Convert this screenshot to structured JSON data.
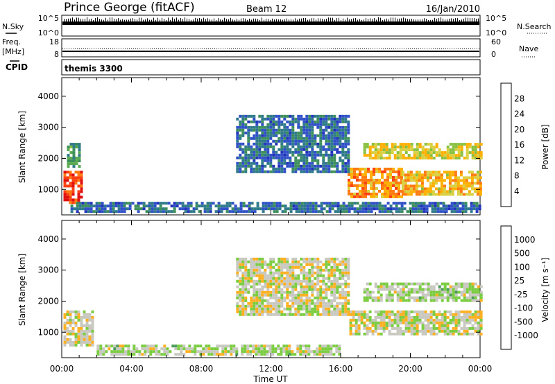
{
  "header": {
    "station": "Prince George (fitACF)",
    "beam": "Beam 12",
    "date": "16/Jan/2010"
  },
  "noise_panel": {
    "left_label": "N.Sky",
    "left_ticks": [
      "10^5",
      "10^0"
    ],
    "right_label": "N.Search",
    "right_ticks": [
      "10^5",
      "10^0"
    ],
    "left_marker": "line",
    "right_marker": "dotted"
  },
  "freq_panel": {
    "left_label": "Freq.",
    "left_unit": "[MHz]",
    "left_ticks": [
      "18",
      "8"
    ],
    "right_label": "Nave",
    "right_ticks": [
      "60",
      "0"
    ]
  },
  "cpid_panel": {
    "label": "CPID",
    "value": "themis 3300"
  },
  "x_axis": {
    "label": "Time UT",
    "ticks": [
      "00:00",
      "04:00",
      "08:00",
      "12:00",
      "16:00",
      "20:00",
      "00:00"
    ],
    "range_hours": [
      0,
      24
    ]
  },
  "chart_data": [
    {
      "type": "heatmap",
      "name": "power",
      "ylabel": "Slant Range [km]",
      "yticks": [
        1000,
        2000,
        3000,
        4000
      ],
      "ylim": [
        180,
        4600
      ],
      "colorbar": {
        "label": "Power [dB]",
        "ticks": [
          "28",
          "24",
          "20",
          "16",
          "12",
          "8",
          "4"
        ],
        "colors": [
          "#2233bb",
          "#3050c8",
          "#2e7a8a",
          "#3c8f5a",
          "#5aaa50",
          "#88c040",
          "#d8d040",
          "#ffb000",
          "#ff7a10",
          "#ff4010",
          "#e01010"
        ],
        "range": [
          0,
          30
        ]
      },
      "regions": [
        {
          "t": [
            0.1,
            1.2
          ],
          "r": [
            600,
            1600
          ],
          "level": 26
        },
        {
          "t": [
            0.3,
            1.0
          ],
          "r": [
            1700,
            2500
          ],
          "level": 10
        },
        {
          "t": [
            16.4,
            19.5
          ],
          "r": [
            800,
            1700
          ],
          "level": 22
        },
        {
          "t": [
            19.5,
            24.0
          ],
          "r": [
            800,
            1600
          ],
          "level": 20
        },
        {
          "t": [
            17.3,
            24.0
          ],
          "r": [
            2000,
            2500
          ],
          "level": 18
        },
        {
          "t": [
            10.0,
            16.5
          ],
          "r": [
            1600,
            3400
          ],
          "level": 6
        },
        {
          "t": [
            0.5,
            24.0
          ],
          "r": [
            250,
            600
          ],
          "level": 6
        }
      ]
    },
    {
      "type": "heatmap",
      "name": "velocity",
      "ylabel": "Slant Range [km]",
      "yticks": [
        1000,
        2000,
        3000,
        4000
      ],
      "ylim": [
        180,
        4600
      ],
      "colorbar": {
        "label": "Velocity [m s⁻¹]",
        "ticks": [
          "1000",
          "500",
          "100",
          "25",
          "-25",
          "-100",
          "-500",
          "-1000"
        ],
        "colors": [
          "#2040b0",
          "#3c78a0",
          "#4a9a58",
          "#7acc40",
          "#c8c8c0",
          "#ffb020",
          "#ff8010",
          "#ff3010",
          "#e01010"
        ],
        "range": [
          -1000,
          1000
        ]
      },
      "regions": [
        {
          "t": [
            0.1,
            1.8
          ],
          "r": [
            600,
            1700
          ],
          "level": 25
        },
        {
          "t": [
            16.5,
            24.0
          ],
          "r": [
            900,
            1700
          ],
          "level": 0
        },
        {
          "t": [
            17.3,
            24.0
          ],
          "r": [
            2000,
            2600
          ],
          "level": -100
        },
        {
          "t": [
            10.0,
            16.5
          ],
          "r": [
            1600,
            3400
          ],
          "level": 0
        },
        {
          "t": [
            2.0,
            16.0
          ],
          "r": [
            250,
            600
          ],
          "level": -100
        }
      ]
    }
  ]
}
